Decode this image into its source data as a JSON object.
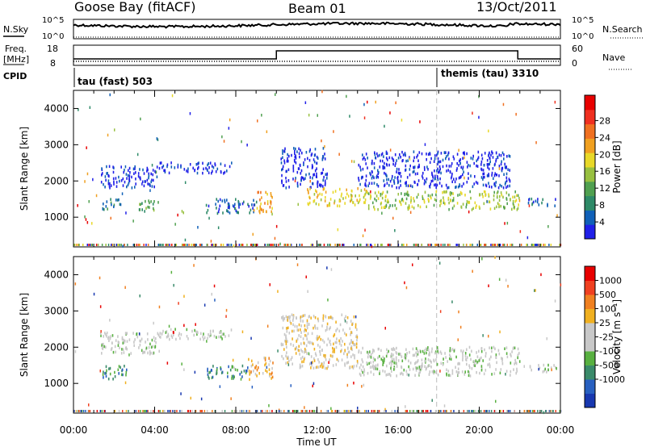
{
  "header": {
    "station": "Goose Bay (fitACF)",
    "beam": "Beam 01",
    "date": "13/Oct/2011"
  },
  "summary": {
    "left_label_1": "N.Sky",
    "left_label_2": "Freq.",
    "left_label_2_unit": "[MHz]",
    "left_label_3": "CPID",
    "right_label_1": "N.Search",
    "right_label_2": "Nave",
    "noise_ticks_left": [
      "10^5",
      "10^0"
    ],
    "noise_ticks_right": [
      "10^5",
      "10^0"
    ],
    "freq_ticks": [
      "18",
      "8"
    ],
    "nave_ticks": [
      "60",
      "0"
    ],
    "cpid_1": "tau (fast) 503",
    "cpid_2": "themis (tau) 3310"
  },
  "chart_data": [
    {
      "type": "heatmap",
      "name": "power",
      "ylabel": "Slant Range [km]",
      "yticks": [
        "1000",
        "2000",
        "3000",
        "4000"
      ],
      "ylim": [
        180,
        4500
      ],
      "xlim": [
        0,
        24
      ],
      "colorbar": {
        "label": "Power [dB]",
        "ticks": [
          "4",
          "8",
          "12",
          "16",
          "20",
          "24",
          "28"
        ],
        "colors": [
          "#2020e8",
          "#1060b8",
          "#2e8a68",
          "#50a050",
          "#98c040",
          "#e8d828",
          "#f0a020",
          "#f07020",
          "#f03020",
          "#e80000"
        ]
      },
      "regions": [
        {
          "t0": 1.3,
          "t1": 4.2,
          "r0": 1800,
          "r1": 2400,
          "level": 0
        },
        {
          "t0": 4.2,
          "t1": 7.8,
          "r0": 2200,
          "r1": 2500,
          "level": 0
        },
        {
          "t0": 1.4,
          "t1": 2.4,
          "r0": 1200,
          "r1": 1500,
          "level": 2
        },
        {
          "t0": 3.0,
          "t1": 4.2,
          "r0": 1150,
          "r1": 1450,
          "level": 3
        },
        {
          "t0": 6.5,
          "t1": 9.0,
          "r0": 1100,
          "r1": 1500,
          "level": 1
        },
        {
          "t0": 8.8,
          "t1": 9.8,
          "r0": 1100,
          "r1": 1700,
          "level": 6
        },
        {
          "t0": 10.2,
          "t1": 12.5,
          "r0": 1800,
          "r1": 2900,
          "level": 0
        },
        {
          "t0": 11.5,
          "t1": 14.5,
          "r0": 1300,
          "r1": 1800,
          "level": 5
        },
        {
          "t0": 14.5,
          "t1": 22.0,
          "r0": 1200,
          "r1": 1700,
          "level": 4
        },
        {
          "t0": 14.0,
          "t1": 21.5,
          "r0": 1800,
          "r1": 2800,
          "level": 0
        },
        {
          "t0": 22.3,
          "t1": 23.8,
          "r0": 1300,
          "r1": 1500,
          "level": 1
        }
      ]
    },
    {
      "type": "heatmap",
      "name": "velocity",
      "xlabel": "Time UT",
      "ylabel": "Slant Range [km]",
      "yticks": [
        "1000",
        "2000",
        "3000",
        "4000"
      ],
      "xticks": [
        "00:00",
        "04:00",
        "08:00",
        "12:00",
        "16:00",
        "20:00",
        "00:00"
      ],
      "ylim": [
        180,
        4500
      ],
      "xlim": [
        0,
        24
      ],
      "colorbar": {
        "label": "Velocity [m s⁻¹]",
        "ticks": [
          "1000",
          "500",
          "100",
          "25",
          "-25",
          "-100",
          "-500",
          "-1000"
        ],
        "colors": [
          "#1838b0",
          "#2860c0",
          "#3a8a6a",
          "#58b040",
          "#c8c8c8",
          "#c8c8c8",
          "#f0b020",
          "#f08020",
          "#f04020",
          "#e80000"
        ]
      },
      "regions": [
        {
          "t0": 1.3,
          "t1": 4.2,
          "r0": 1800,
          "r1": 2400,
          "level": 4
        },
        {
          "t0": 4.2,
          "t1": 7.8,
          "r0": 2200,
          "r1": 2500,
          "level": 4
        },
        {
          "t0": 1.4,
          "t1": 2.6,
          "r0": 1100,
          "r1": 1500,
          "level": 2
        },
        {
          "t0": 6.5,
          "t1": 8.6,
          "r0": 1100,
          "r1": 1500,
          "level": 2
        },
        {
          "t0": 8.6,
          "t1": 9.8,
          "r0": 1100,
          "r1": 1700,
          "level": 6
        },
        {
          "t0": 10.2,
          "t1": 14.0,
          "r0": 1400,
          "r1": 2900,
          "level": 5
        },
        {
          "t0": 14.0,
          "t1": 22.0,
          "r0": 1200,
          "r1": 2000,
          "level": 4
        },
        {
          "t0": 22.3,
          "t1": 23.8,
          "r0": 1300,
          "r1": 1500,
          "level": 4
        }
      ]
    }
  ]
}
